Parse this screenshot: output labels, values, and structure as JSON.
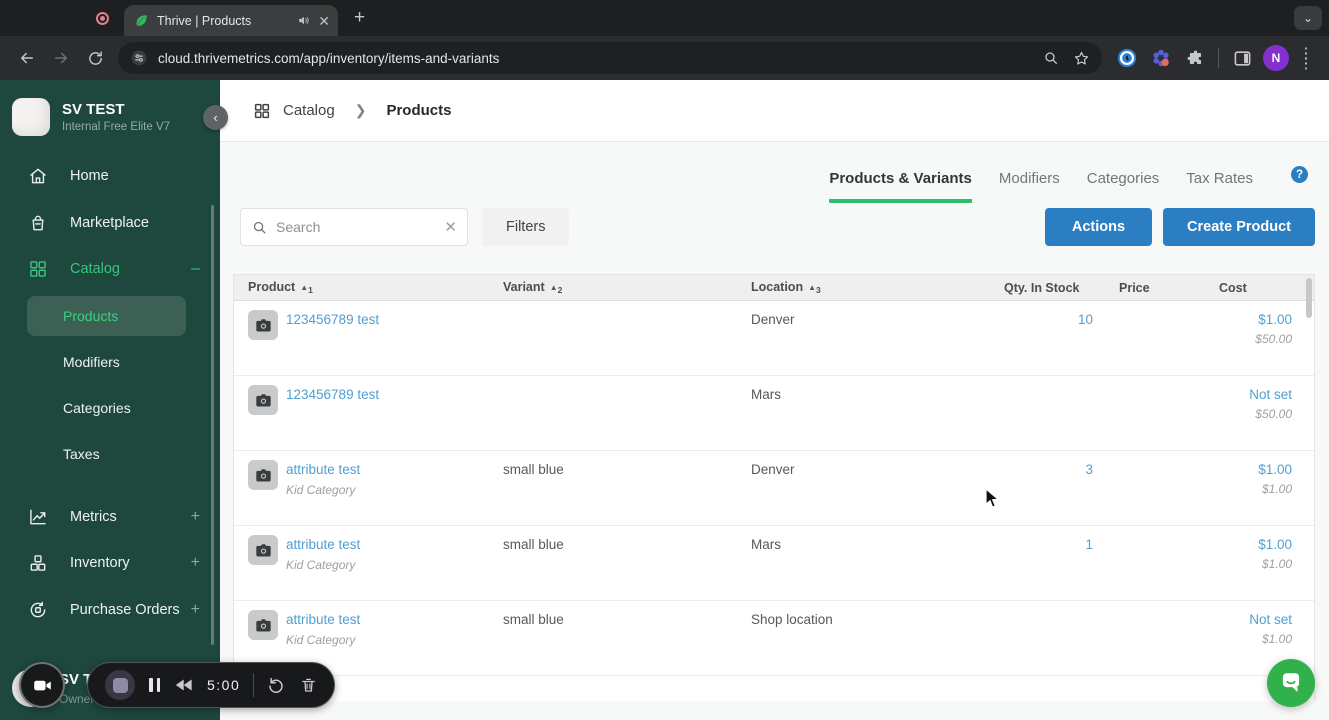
{
  "browser": {
    "tab_title": "Thrive | Products",
    "url": "cloud.thrivemetrics.com/app/inventory/items-and-variants",
    "profile_initial": "N"
  },
  "sidebar": {
    "org_name": "SV TEST",
    "org_plan": "Internal Free Elite V7",
    "nav": [
      {
        "type": "item",
        "icon": "home-icon",
        "label": "Home"
      },
      {
        "type": "item",
        "icon": "marketplace-icon",
        "label": "Marketplace"
      },
      {
        "type": "item",
        "icon": "catalog-icon",
        "label": "Catalog",
        "active": true,
        "suffix": "–"
      },
      {
        "type": "sub",
        "label": "Products",
        "active": true
      },
      {
        "type": "sub",
        "label": "Modifiers"
      },
      {
        "type": "sub",
        "label": "Categories"
      },
      {
        "type": "sub",
        "label": "Taxes"
      },
      {
        "type": "gap"
      },
      {
        "type": "item",
        "icon": "metrics-icon",
        "label": "Metrics",
        "suffix": "+"
      },
      {
        "type": "item",
        "icon": "inventory-icon",
        "label": "Inventory",
        "suffix": "+"
      },
      {
        "type": "item",
        "icon": "purchase-orders-icon",
        "label": "Purchase Orders",
        "suffix": "+"
      }
    ],
    "footer": {
      "name": "SV TEST",
      "role": "Owner"
    }
  },
  "breadcrumb": {
    "section": "Catalog",
    "page": "Products"
  },
  "tabs": {
    "items": [
      "Products & Variants",
      "Modifiers",
      "Categories",
      "Tax Rates"
    ],
    "active_index": 0,
    "help_label": "?"
  },
  "controls": {
    "search_placeholder": "Search",
    "filters_label": "Filters",
    "actions_label": "Actions",
    "create_label": "Create Product"
  },
  "table": {
    "columns": [
      {
        "label": "Product",
        "sort": "1"
      },
      {
        "label": "Variant",
        "sort": "2"
      },
      {
        "label": "Location",
        "sort": "3"
      },
      {
        "label": "Qty. In Stock"
      },
      {
        "label": "Price"
      },
      {
        "label": "Cost"
      }
    ],
    "rows": [
      {
        "product": "123456789 test",
        "category": "",
        "variant": "",
        "location": "Denver",
        "qty": "10",
        "price": "$1.00",
        "cost": "$50.00"
      },
      {
        "product": "123456789 test",
        "category": "",
        "variant": "",
        "location": "Mars",
        "qty": "",
        "price": "Not set",
        "cost": "$50.00"
      },
      {
        "product": "attribute test",
        "category": "Kid Category",
        "variant": "small blue",
        "location": "Denver",
        "qty": "3",
        "price": "$1.00",
        "cost": "$1.00"
      },
      {
        "product": "attribute test",
        "category": "Kid Category",
        "variant": "small blue",
        "location": "Mars",
        "qty": "1",
        "price": "$1.00",
        "cost": "$1.00"
      },
      {
        "product": "attribute test",
        "category": "Kid Category",
        "variant": "small blue",
        "location": "Shop location",
        "qty": "",
        "price": "Not set",
        "cost": "$1.00"
      }
    ]
  },
  "recorder": {
    "time": "5:00"
  },
  "colors": {
    "sidebar_green": "#1e473d",
    "accent_green": "#2bbf6c",
    "link_blue": "#4f9fd2",
    "button_blue": "#2c7ec3",
    "chat_green": "#30b14c"
  }
}
